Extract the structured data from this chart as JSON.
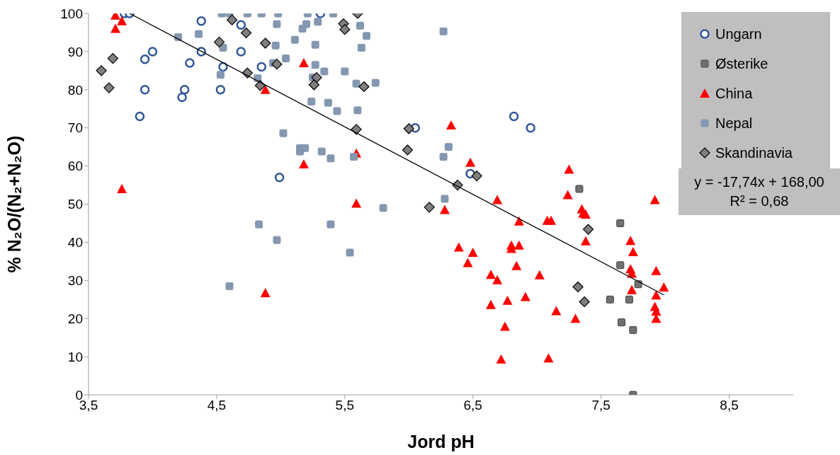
{
  "chart_data": {
    "type": "scatter",
    "xlabel": "Jord pH",
    "ylabel": "% N₂O/(N₂+N₂O)",
    "xlim": [
      3.5,
      9.0
    ],
    "ylim": [
      0,
      100
    ],
    "xticks": [
      {
        "value": 3.5,
        "label": "3,5"
      },
      {
        "value": 4.5,
        "label": "4,5"
      },
      {
        "value": 5.5,
        "label": "5,5"
      },
      {
        "value": 6.5,
        "label": "6,5"
      },
      {
        "value": 7.5,
        "label": "7,5"
      },
      {
        "value": 8.5,
        "label": "8,5"
      }
    ],
    "yticks": [
      0,
      10,
      20,
      30,
      40,
      50,
      60,
      70,
      80,
      90,
      100
    ],
    "legend": "top right",
    "annotations": [
      "y = -17,74x + 168,00",
      "R² = 0,68"
    ],
    "series": [
      {
        "name": "Ungarn",
        "color": "#2f5597",
        "marker": "circle",
        "x": [
          3.78,
          3.82,
          4.38,
          4.69,
          4.0,
          3.94,
          4.38,
          4.69,
          4.29,
          4.55,
          4.85,
          3.94,
          4.25,
          4.53,
          4.23,
          3.9,
          4.99,
          5.31,
          6.05,
          6.48,
          6.82,
          6.95
        ],
        "values": [
          100,
          100,
          98,
          97,
          90,
          88,
          90,
          90,
          87,
          86,
          86,
          80,
          80,
          80,
          78,
          73,
          57,
          100,
          70,
          58,
          73,
          70
        ]
      },
      {
        "name": "Østerike",
        "color": "#707070",
        "marker": "square",
        "x": [
          7.33,
          7.65,
          7.65,
          7.79,
          7.57,
          7.72,
          7.66,
          7.75,
          7.75
        ],
        "values": [
          54,
          45,
          34,
          29,
          25,
          25,
          19,
          17,
          0
        ]
      },
      {
        "name": "China",
        "color": "#ff0000",
        "marker": "triangle",
        "x": [
          3.71,
          3.76,
          3.71,
          3.76,
          4.88,
          4.88,
          5.18,
          5.18,
          5.59,
          5.59,
          6.33,
          6.48,
          6.28,
          6.69,
          7.25,
          7.24,
          7.35,
          7.36,
          7.38,
          6.86,
          7.08,
          7.11,
          7.38,
          6.39,
          6.5,
          6.46,
          6.8,
          6.8,
          6.86,
          6.84,
          6.64,
          6.69,
          7.02,
          6.64,
          6.77,
          6.91,
          7.15,
          7.3,
          6.75,
          6.72,
          7.09,
          7.92,
          7.73,
          7.75,
          7.73,
          7.74,
          7.74,
          7.93,
          7.99,
          7.93,
          7.92,
          7.93,
          7.93
        ],
        "values": [
          99.5,
          98,
          96,
          54,
          80,
          26.7,
          87,
          60.5,
          63.3,
          50.2,
          70.7,
          60.9,
          48.5,
          51.1,
          59.1,
          52.4,
          48.7,
          47.6,
          47.3,
          45.5,
          45.7,
          45.7,
          40.3,
          38.7,
          37.3,
          34.6,
          39.2,
          38.3,
          39.2,
          33.8,
          31.5,
          30.1,
          31.4,
          23.6,
          24.7,
          25.7,
          22,
          20,
          17.9,
          9.3,
          9.6,
          51.1,
          40.4,
          37.5,
          33,
          31.8,
          27.5,
          32.5,
          28.2,
          26.1,
          23.1,
          21.9,
          20
        ]
      },
      {
        "name": "Nepal",
        "color": "#8497b0",
        "marker": "square",
        "x": [
          4.54,
          4.6,
          4.74,
          4.85,
          4.98,
          4.97,
          4.2,
          4.36,
          4.55,
          4.96,
          5.11,
          5.04,
          4.94,
          4.53,
          4.82,
          5.02,
          4.83,
          4.97,
          5.39,
          5.54,
          4.6,
          5.21,
          5.41,
          5.29,
          5.2,
          5.17,
          5.62,
          5.67,
          5.27,
          5.63,
          6.27,
          5.27,
          5.34,
          5.5,
          5.25,
          5.59,
          5.74,
          5.24,
          5.37,
          5.44,
          5.6,
          5.15,
          5.19,
          5.15,
          5.32,
          5.39,
          5.57,
          6.31,
          6.27,
          6.28,
          5.8
        ],
        "values": [
          100,
          100,
          100,
          100,
          100,
          97.2,
          93.8,
          94.6,
          91,
          91.6,
          93.1,
          88.2,
          87,
          83.9,
          83,
          68.6,
          44.7,
          40.6,
          44.7,
          37.3,
          28.5,
          100,
          100,
          97.8,
          97.2,
          96,
          96.8,
          94.1,
          91.8,
          91,
          95.3,
          86.5,
          84.8,
          84.8,
          83.2,
          81.6,
          81.8,
          76.9,
          76.6,
          74.4,
          74.6,
          64.7,
          64.7,
          63.8,
          63.8,
          62,
          62.4,
          65,
          62.4,
          51.4,
          49
        ]
      },
      {
        "name": "Skandinavia",
        "color": "#7f7f7f",
        "marker": "diamond",
        "x": [
          3.6,
          3.69,
          3.66,
          4.62,
          4.52,
          4.73,
          4.88,
          4.74,
          4.84,
          4.97,
          5.6,
          5.49,
          5.5,
          5.28,
          5.26,
          5.65,
          5.59,
          6.0,
          5.99,
          6.53,
          6.38,
          6.16,
          7.4,
          7.32,
          7.37
        ],
        "values": [
          85,
          88.2,
          80.5,
          98.3,
          92.5,
          94.9,
          92.2,
          84.4,
          81.1,
          86.7,
          100,
          97.3,
          95.8,
          83.2,
          81.3,
          80.8,
          69.6,
          69.8,
          64.2,
          57.4,
          55,
          49.2,
          43.4,
          28.3,
          24.4
        ]
      },
      {
        "type": "line",
        "color": "#000000",
        "marker": "none",
        "x": [
          3.82,
          7.99
        ],
        "values": [
          100,
          26.2
        ]
      }
    ]
  }
}
